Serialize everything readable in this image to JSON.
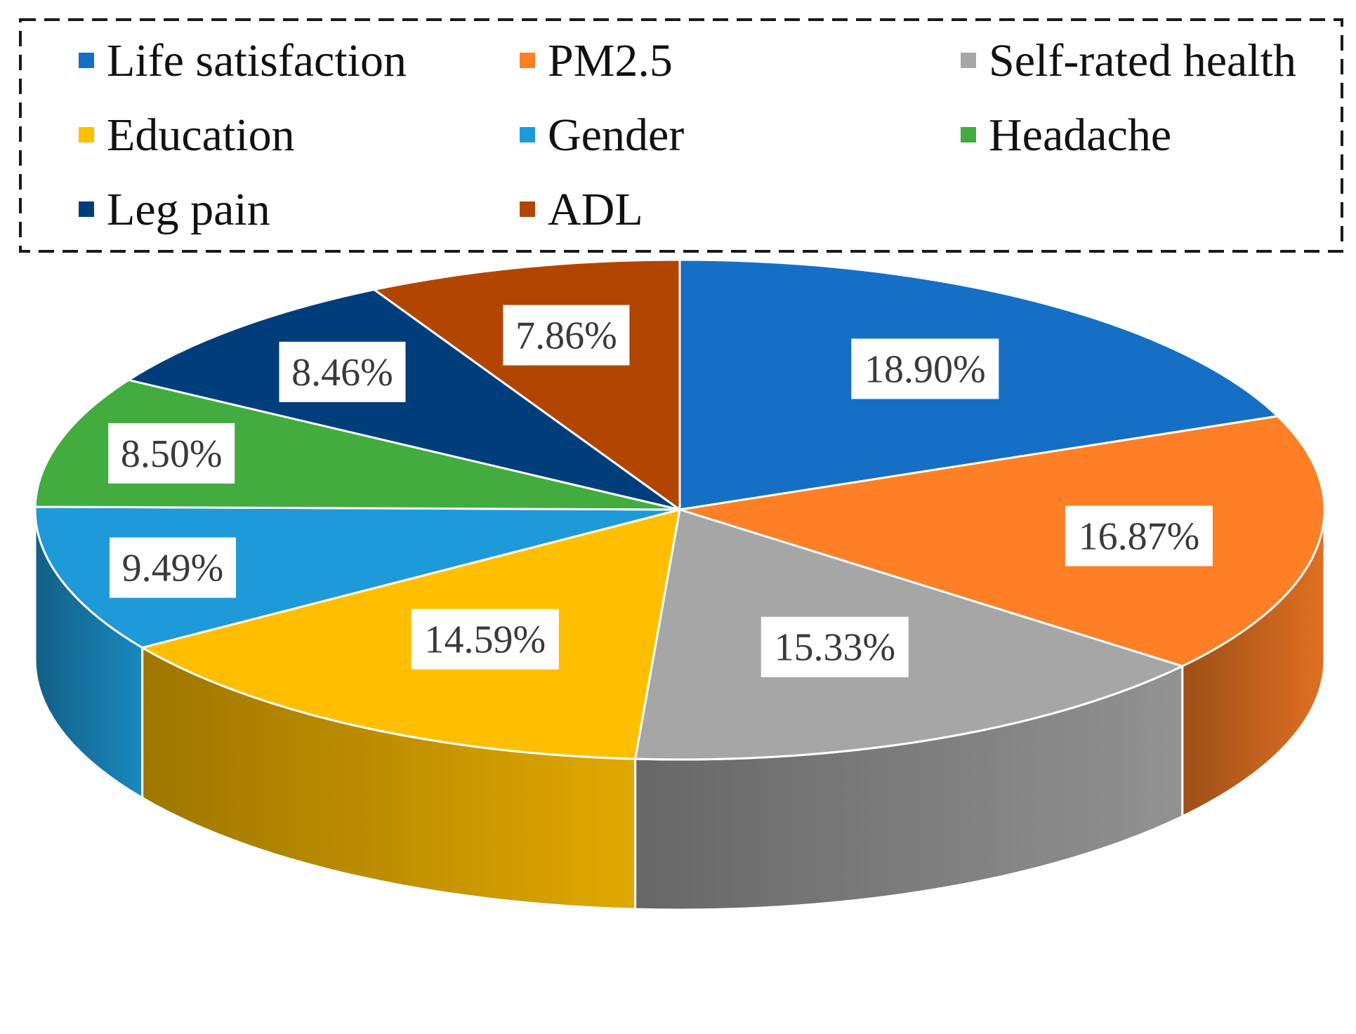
{
  "chart_data": {
    "type": "pie",
    "style": "3d",
    "title": "",
    "unit": "%",
    "legend_position": "top",
    "slices": [
      {
        "label": "Life satisfaction",
        "value": 18.9,
        "display": "18.90%",
        "color": "#1570C5"
      },
      {
        "label": "PM2.5",
        "value": 16.87,
        "display": "16.87%",
        "color": "#FE7F26"
      },
      {
        "label": "Self-rated health",
        "value": 15.33,
        "display": "15.33%",
        "color": "#A6A6A6"
      },
      {
        "label": "Education",
        "value": 14.59,
        "display": "14.59%",
        "color": "#FFBF00"
      },
      {
        "label": "Gender",
        "value": 9.49,
        "display": "9.49%",
        "color": "#1E9AD8"
      },
      {
        "label": "Headache",
        "value": 8.5,
        "display": "8.50%",
        "color": "#42AC3E"
      },
      {
        "label": "Leg pain",
        "value": 8.46,
        "display": "8.46%",
        "color": "#003E7B"
      },
      {
        "label": "ADL",
        "value": 7.86,
        "display": "7.86%",
        "color": "#B24601"
      }
    ]
  }
}
